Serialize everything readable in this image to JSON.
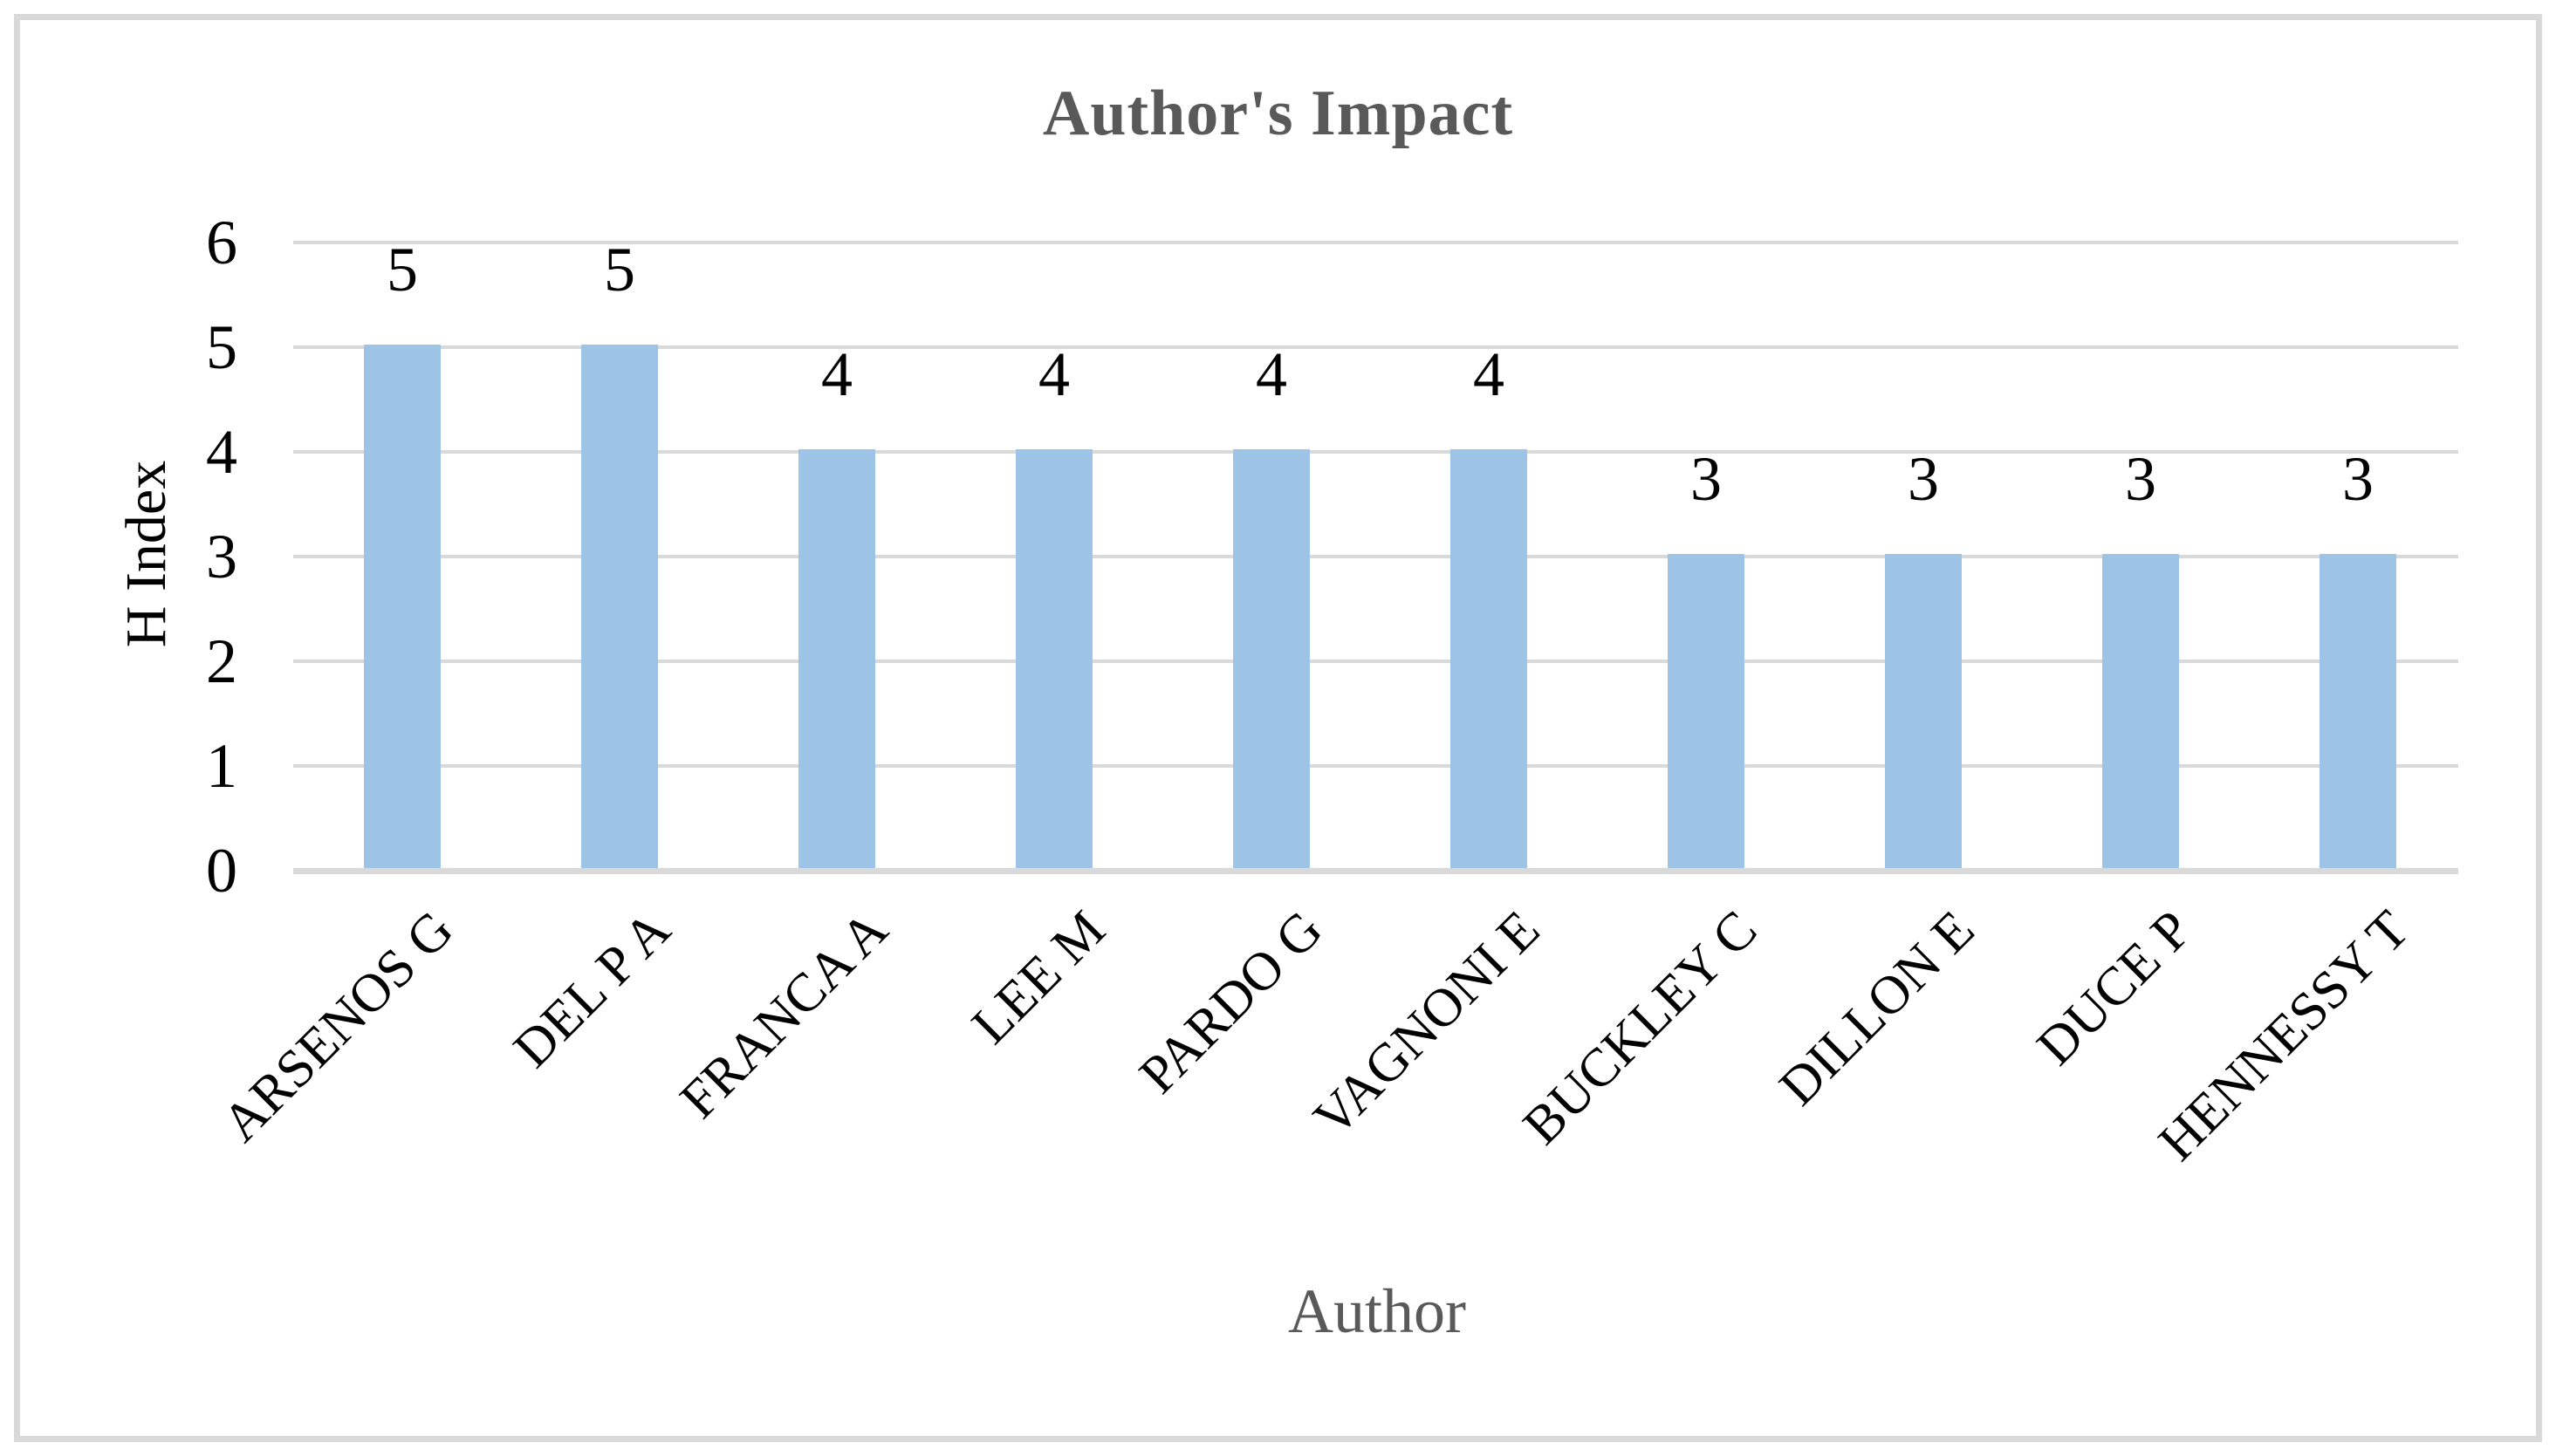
{
  "chart_data": {
    "type": "bar",
    "title": "Author's Impact",
    "xlabel": "Author",
    "ylabel": "H Index",
    "categories": [
      "ARSENOS G",
      "DEL P A",
      "FRANCA A",
      "LEE M",
      "PARDO G",
      "VAGNONI E",
      "BUCKLEY C",
      "DILLON E",
      "DUCE P",
      "HENNESSY T"
    ],
    "values": [
      5,
      5,
      4,
      4,
      4,
      4,
      3,
      3,
      3,
      3
    ],
    "data_labels": [
      "5",
      "5",
      "4",
      "4",
      "4",
      "4",
      "3",
      "3",
      "3",
      "3"
    ],
    "yticks": [
      "0",
      "1",
      "2",
      "3",
      "4",
      "5",
      "6"
    ],
    "ylim": [
      0,
      6
    ],
    "grid": "horizontal",
    "legend": "none",
    "colors": {
      "bar_fill": "#9DC3E6",
      "gridline": "#D9D9D9",
      "axis_line": "#D9D9D9",
      "frame_border": "#D9D9D9",
      "title_text": "#595959",
      "x_axis_title_text": "#595959",
      "y_axis_title_text": "#000000",
      "tick_label_text": "#000000",
      "data_label_text": "#000000",
      "category_label_text": "#000000",
      "background": "#FFFFFF"
    }
  }
}
